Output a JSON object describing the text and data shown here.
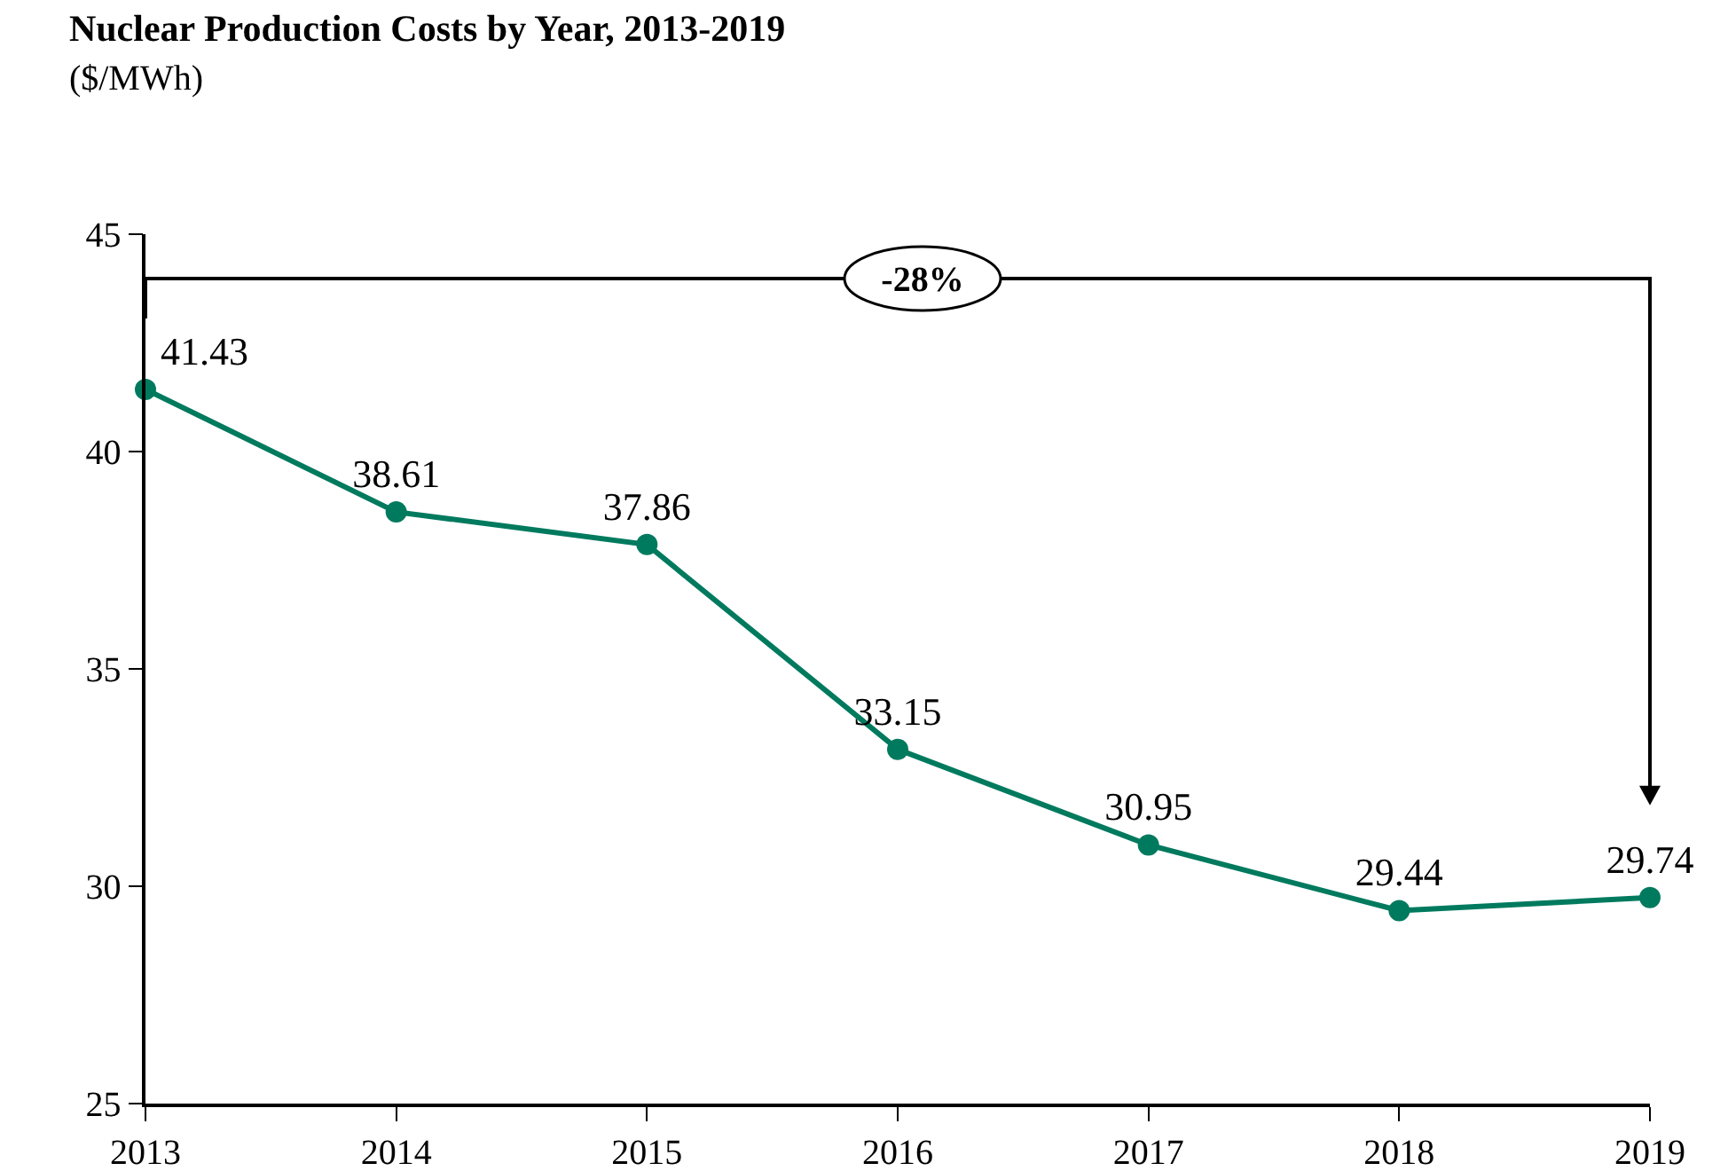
{
  "chart_data": {
    "type": "line",
    "title": "Nuclear Production Costs by Year, 2013-2019",
    "subtitle": "($/MWh)",
    "categories": [
      "2013",
      "2014",
      "2015",
      "2016",
      "2017",
      "2018",
      "2019"
    ],
    "values": [
      41.43,
      38.61,
      37.86,
      33.15,
      30.95,
      29.44,
      29.74
    ],
    "color": "#007a5e",
    "marker": "circle",
    "line_style": "solid",
    "ylim": [
      25,
      45
    ],
    "yticks": [
      25,
      30,
      35,
      40,
      45
    ],
    "grid": false,
    "legend": false,
    "data_labels": true,
    "annotations": [
      "-28%"
    ]
  }
}
